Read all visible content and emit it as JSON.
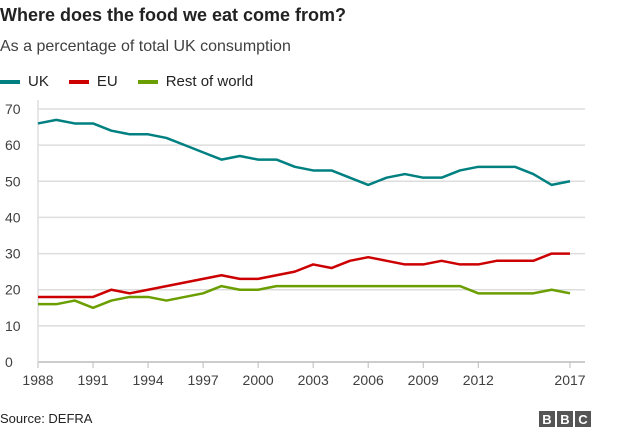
{
  "chart_data": {
    "type": "line",
    "title": "Where does the food we eat come from?",
    "subtitle": "As a percentage of total UK consumption",
    "x": [
      1988,
      1989,
      1990,
      1991,
      1992,
      1993,
      1994,
      1995,
      1996,
      1997,
      1998,
      1999,
      2000,
      2001,
      2002,
      2003,
      2004,
      2005,
      2006,
      2007,
      2008,
      2009,
      2010,
      2011,
      2012,
      2013,
      2014,
      2015,
      2016,
      2017
    ],
    "xticks": [
      "1988",
      "1991",
      "1994",
      "1997",
      "2000",
      "2003",
      "2006",
      "2009",
      "2012",
      "2017"
    ],
    "yticks": [
      "0",
      "10",
      "20",
      "30",
      "40",
      "50",
      "60",
      "70"
    ],
    "ylim": [
      0,
      70
    ],
    "grid": true,
    "legend": "top-left",
    "series": [
      {
        "name": "UK",
        "color": "#008080",
        "values": [
          66,
          67,
          66,
          66,
          64,
          63,
          63,
          62,
          60,
          58,
          56,
          57,
          56,
          56,
          54,
          53,
          53,
          51,
          49,
          51,
          52,
          51,
          51,
          53,
          54,
          54,
          54,
          52,
          49,
          50
        ]
      },
      {
        "name": "EU",
        "color": "#cc0000",
        "values": [
          18,
          18,
          18,
          18,
          20,
          19,
          20,
          21,
          22,
          23,
          24,
          23,
          23,
          24,
          25,
          27,
          26,
          28,
          29,
          28,
          27,
          27,
          28,
          27,
          27,
          28,
          28,
          28,
          30,
          30
        ]
      },
      {
        "name": "Rest of world",
        "color": "#6b9e00",
        "values": [
          16,
          16,
          17,
          15,
          17,
          18,
          18,
          17,
          18,
          19,
          21,
          20,
          20,
          21,
          21,
          21,
          21,
          21,
          21,
          21,
          21,
          21,
          21,
          21,
          19,
          19,
          19,
          19,
          20,
          19
        ]
      }
    ]
  },
  "source": "Source: DEFRA",
  "logo": [
    "B",
    "B",
    "C"
  ]
}
